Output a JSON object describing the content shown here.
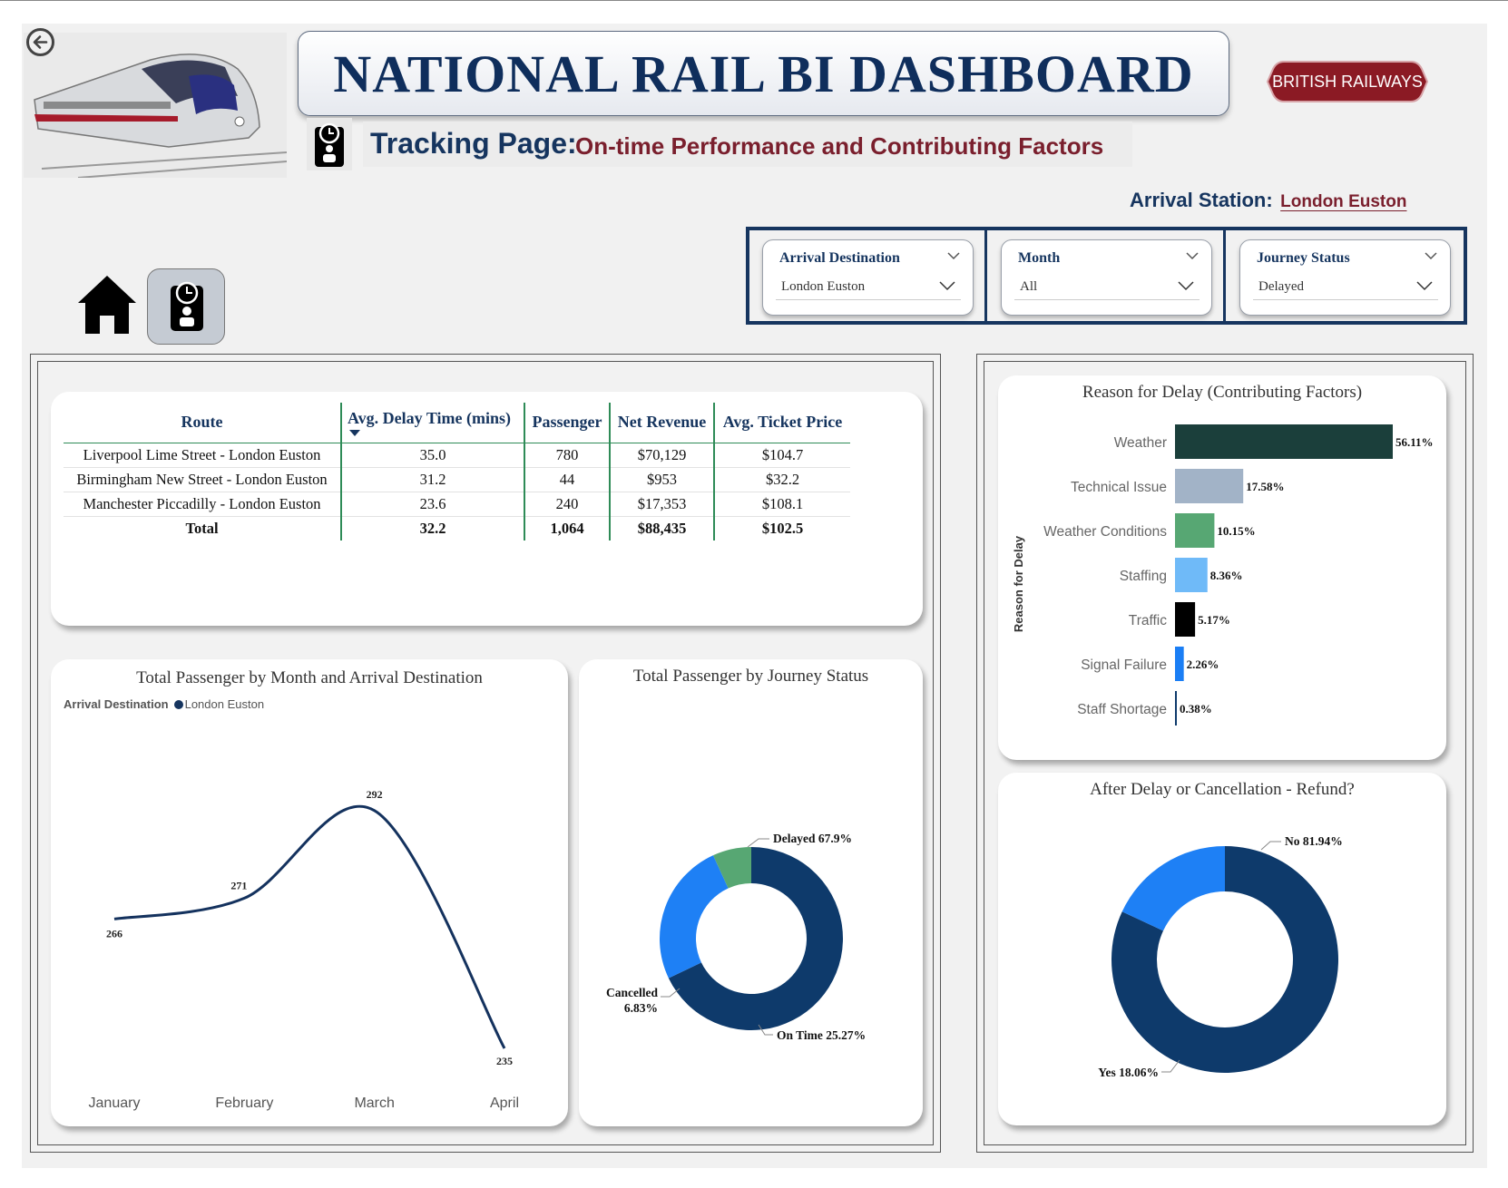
{
  "header": {
    "title": "NATIONAL RAIL BI DASHBOARD",
    "logo_text": "BRITISH RAILWAYS",
    "tracking_label": "Tracking Page:",
    "tracking_subtitle": "On-time Performance and Contributing Factors",
    "arrival_label": "Arrival Station:",
    "arrival_value": "London Euston"
  },
  "slicers": [
    {
      "title": "Arrival Destination",
      "value": "London Euston"
    },
    {
      "title": "Month",
      "value": "All"
    },
    {
      "title": "Journey Status",
      "value": "Delayed"
    }
  ],
  "table": {
    "headers": [
      "Route",
      "Avg. Delay Time (mins)",
      "Passenger",
      "Net Revenue",
      "Avg. Ticket Price"
    ],
    "rows": [
      [
        "Liverpool Lime Street - London Euston",
        "35.0",
        "780",
        "$70,129",
        "$104.7"
      ],
      [
        "Birmingham New Street - London Euston",
        "31.2",
        "44",
        "$953",
        "$32.2"
      ],
      [
        "Manchester Piccadilly - London Euston",
        "23.6",
        "240",
        "$17,353",
        "$108.1"
      ]
    ],
    "total": [
      "Total",
      "32.2",
      "1,064",
      "$88,435",
      "$102.5"
    ]
  },
  "line_chart": {
    "title": "Total Passenger by Month and Arrival Destination",
    "legend_title": "Arrival Destination",
    "legend_item": "London Euston"
  },
  "journey_chart": {
    "title": "Total Passenger by Journey Status"
  },
  "delay_chart": {
    "title": "Reason for Delay (Contributing Factors)",
    "axis_label": "Reason for Delay"
  },
  "refund_chart": {
    "title": "After Delay or Cancellation - Refund?"
  },
  "colors": {
    "navy": "#0e3a6b",
    "blue": "#1e80f5",
    "green": "#57a773",
    "dark_teal": "#1b3f3b",
    "grey_blue": "#a2b3c7",
    "light_blue": "#6fbaf8",
    "black": "#000000",
    "bright_blue": "#1a7ef5",
    "title_navy": "#0f2e5c",
    "maroon": "#7a1f2d"
  },
  "chart_data": [
    {
      "type": "line",
      "categories": [
        "January",
        "February",
        "March",
        "April"
      ],
      "series": [
        {
          "name": "London Euston",
          "values": [
            266,
            271,
            292,
            235
          ]
        }
      ],
      "title": "Total Passenger by Month and Arrival Destination"
    },
    {
      "type": "pie",
      "labels": [
        "Delayed",
        "On Time",
        "Cancelled"
      ],
      "values": [
        67.9,
        25.27,
        6.83
      ],
      "display_labels": [
        "Delayed 67.9%",
        "On Time 25.27%",
        "Cancelled 6.83%"
      ],
      "colors": [
        "#0e3a6b",
        "#1e80f5",
        "#57a773"
      ],
      "title": "Total Passenger by Journey Status"
    },
    {
      "type": "bar",
      "orientation": "horizontal",
      "categories": [
        "Weather",
        "Technical Issue",
        "Weather Conditions",
        "Staffing",
        "Traffic",
        "Signal Failure",
        "Staff Shortage"
      ],
      "values": [
        56.11,
        17.58,
        10.15,
        8.36,
        5.17,
        2.26,
        0.38
      ],
      "value_labels": [
        "56.11%",
        "17.58%",
        "10.15%",
        "8.36%",
        "5.17%",
        "2.26%",
        "0.38%"
      ],
      "colors": [
        "#1b3f3b",
        "#a2b3c7",
        "#57a773",
        "#6fbaf8",
        "#000000",
        "#1a7ef5",
        "#0e3a6b"
      ],
      "title": "Reason for Delay (Contributing Factors)",
      "ylabel": "Reason for Delay"
    },
    {
      "type": "pie",
      "labels": [
        "No",
        "Yes"
      ],
      "values": [
        81.94,
        18.06
      ],
      "display_labels": [
        "No 81.94%",
        "Yes 18.06%"
      ],
      "colors": [
        "#0e3a6b",
        "#1e80f5"
      ],
      "title": "After Delay or Cancellation - Refund?"
    }
  ]
}
